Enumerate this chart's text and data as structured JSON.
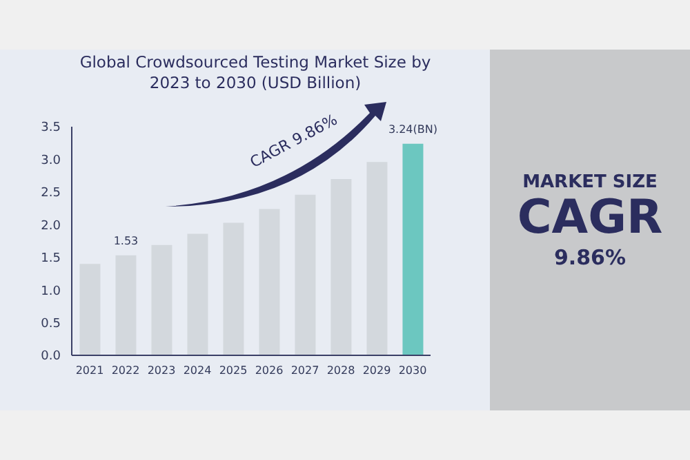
{
  "chart_data": {
    "type": "bar",
    "title": "Global Crowdsourced Testing Market Size by 2023 to 2030 (USD Billion)",
    "categories": [
      "2021",
      "2022",
      "2023",
      "2024",
      "2025",
      "2026",
      "2027",
      "2028",
      "2029",
      "2030"
    ],
    "values": [
      1.4,
      1.53,
      1.69,
      1.86,
      2.03,
      2.24,
      2.46,
      2.7,
      2.96,
      3.24
    ],
    "colors": [
      "#d3d8dd",
      "#d3d8dd",
      "#d3d8dd",
      "#d3d8dd",
      "#d3d8dd",
      "#d3d8dd",
      "#d3d8dd",
      "#d3d8dd",
      "#d3d8dd",
      "#6cc7c0"
    ],
    "value_labels": [
      null,
      "1.53",
      null,
      null,
      null,
      null,
      null,
      null,
      null,
      "3.24(BN)"
    ],
    "ylim": [
      0,
      3.5
    ],
    "yticks": [
      {
        "value": 0,
        "label": "0.0"
      },
      {
        "value": 0.5,
        "label": "0.5"
      },
      {
        "value": 1,
        "label": "1.0"
      },
      {
        "value": 1.5,
        "label": "1.5"
      },
      {
        "value": 2,
        "label": "2.0"
      },
      {
        "value": 2.5,
        "label": "2.5"
      },
      {
        "value": 3,
        "label": "3.0"
      },
      {
        "value": 3.5,
        "label": "3.5"
      }
    ],
    "grid": false,
    "legend": false,
    "annotations": [
      "CAGR 9.86%",
      "MARKET SIZE",
      "CAGR",
      "9.86%"
    ]
  }
}
